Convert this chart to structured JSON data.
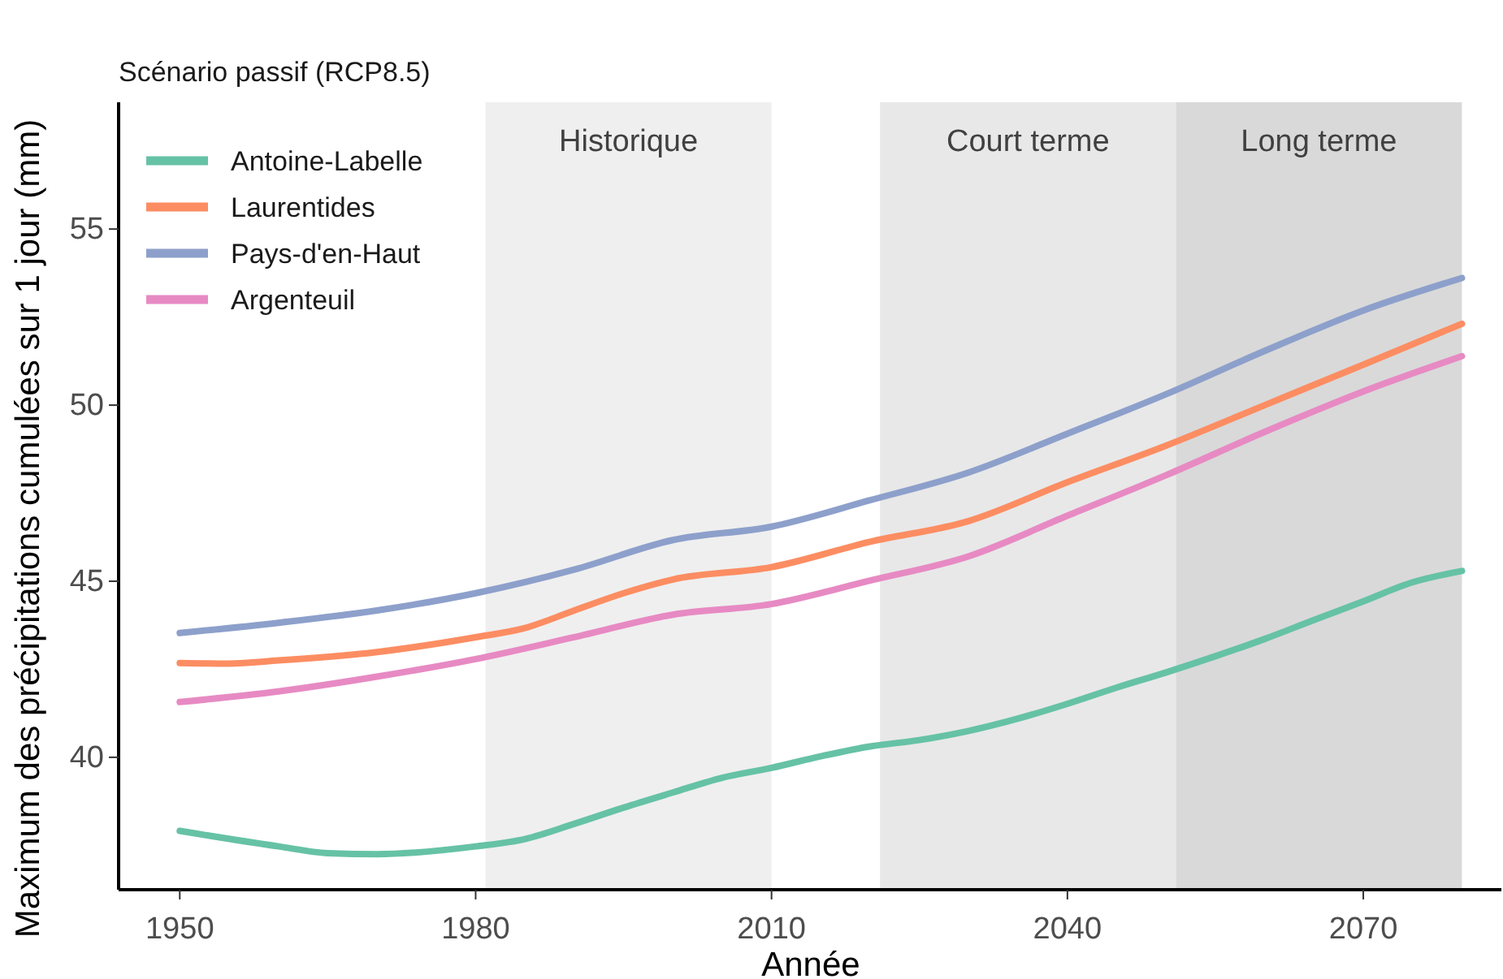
{
  "chart_data": {
    "type": "line",
    "title": "Scénario passif (RCP8.5)",
    "xlabel": "Année",
    "ylabel": "Maximum des précipitations cumulées sur 1 jour (mm)",
    "xlim": [
      1943.8,
      2084
    ],
    "ylim": [
      36.24,
      58.6
    ],
    "xticks": [
      1950,
      1980,
      2010,
      2040,
      2070
    ],
    "yticks": [
      40,
      45,
      50,
      55
    ],
    "grid": false,
    "legend": "top left",
    "line_style": "solid",
    "marker": "none",
    "bands": [
      {
        "axis": "x",
        "from": 1981,
        "to": 2010,
        "label": "Historique",
        "color": "#efefef"
      },
      {
        "axis": "x",
        "from": 2021,
        "to": 2051,
        "label": "Court terme",
        "color": "#e8e8e8"
      },
      {
        "axis": "x",
        "from": 2051,
        "to": 2080,
        "label": "Long terme",
        "color": "#d9d9d9"
      }
    ],
    "series": [
      {
        "name": "Antoine-Labelle",
        "color": "#66c2a5",
        "x": [
          1950,
          1960,
          1965,
          1970,
          1980,
          1985,
          1990,
          1995,
          2000,
          2005,
          2010,
          2015,
          2020,
          2025,
          2030,
          2035,
          2040,
          2045,
          2050,
          2055,
          2060,
          2065,
          2070,
          2075,
          2080
        ],
        "values": [
          37.91,
          37.47,
          37.28,
          37.25,
          37.47,
          37.68,
          38.11,
          38.57,
          39.0,
          39.42,
          39.7,
          40.03,
          40.31,
          40.49,
          40.75,
          41.1,
          41.52,
          41.98,
          42.41,
          42.87,
          43.36,
          43.9,
          44.43,
          44.97,
          45.29
        ]
      },
      {
        "name": "Laurentides",
        "color": "#fc8d62",
        "x": [
          1950,
          1955,
          1960,
          1970,
          1980,
          1985,
          1990,
          1995,
          2000,
          2010,
          2020,
          2030,
          2040,
          2050,
          2060,
          2070,
          2080
        ],
        "values": [
          42.68,
          42.66,
          42.75,
          42.99,
          43.41,
          43.67,
          44.17,
          44.66,
          45.05,
          45.4,
          46.12,
          46.71,
          47.81,
          48.85,
          50.0,
          51.15,
          52.31
        ]
      },
      {
        "name": "Pays-d'en-Haut",
        "color": "#8da0cb",
        "x": [
          1950,
          1960,
          1970,
          1980,
          1990,
          2000,
          2010,
          2020,
          2030,
          2040,
          2050,
          2060,
          2070,
          2080
        ],
        "values": [
          43.53,
          43.82,
          44.17,
          44.66,
          45.33,
          46.17,
          46.55,
          47.3,
          48.09,
          49.19,
          50.31,
          51.54,
          52.69,
          53.61
        ]
      },
      {
        "name": "Argenteuil",
        "color": "#e78ac3",
        "x": [
          1950,
          1960,
          1970,
          1980,
          1990,
          2000,
          2010,
          2020,
          2030,
          2040,
          2050,
          2060,
          2070,
          2080
        ],
        "values": [
          41.57,
          41.87,
          42.29,
          42.79,
          43.41,
          44.05,
          44.35,
          45.02,
          45.71,
          46.86,
          48.01,
          49.24,
          50.39,
          51.39
        ]
      }
    ]
  }
}
